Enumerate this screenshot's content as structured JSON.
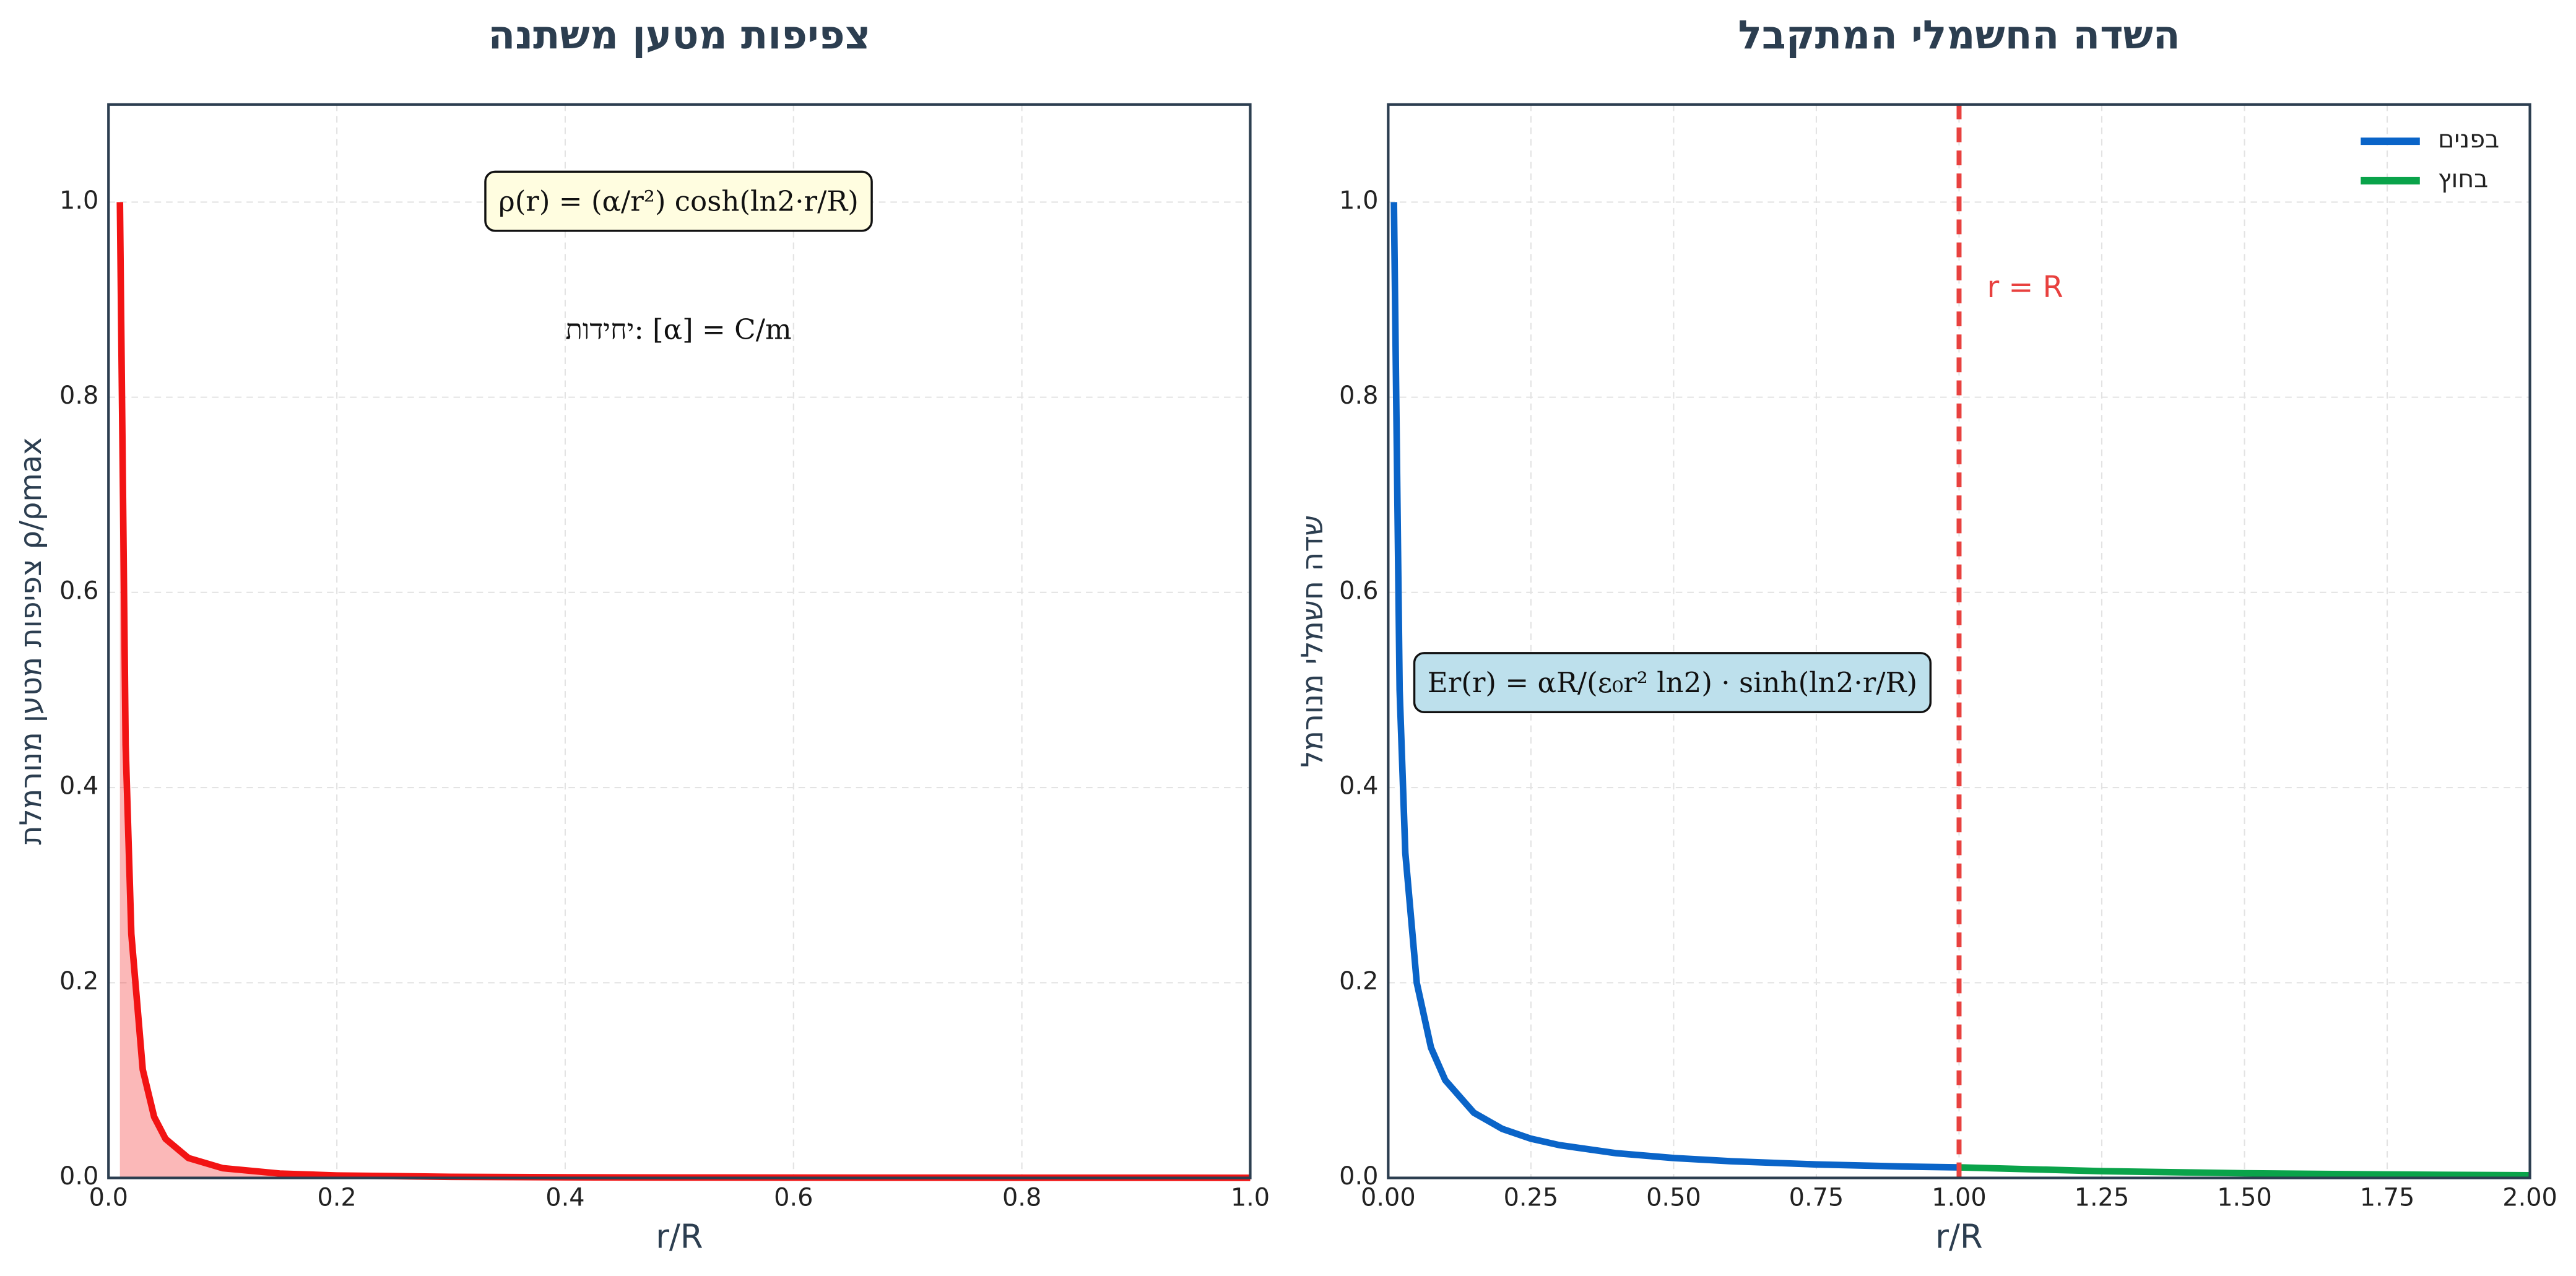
{
  "chart_data": [
    {
      "type": "line",
      "title": "צפיפות מטען משתנה",
      "x_label": "r/R",
      "y_label": "צפיפות מטען מנורמלת ρ/ρmax",
      "fill": true,
      "grid": true,
      "xlim": [
        0,
        1
      ],
      "ylim": [
        0,
        1.1
      ],
      "xticks": [
        {
          "value": 0,
          "label": "0.0"
        },
        0.2,
        0.4,
        0.6,
        0.8,
        {
          "value": 1,
          "label": "1.0"
        }
      ],
      "yticks": [
        {
          "value": 0,
          "label": "0.0"
        },
        0.2,
        0.4,
        0.6,
        0.8,
        {
          "value": 1,
          "label": "1.0"
        }
      ],
      "series": [
        {
          "color": "#f21414",
          "x": [
            0.01,
            0.015,
            0.02,
            0.03,
            0.04,
            0.05,
            0.07,
            0.1,
            0.15,
            0.2,
            0.3,
            0.4,
            0.5,
            0.6,
            0.7,
            0.8,
            0.9,
            1.0
          ],
          "values": [
            1.0,
            0.444,
            0.25,
            0.111,
            0.0625,
            0.04,
            0.0204,
            0.01,
            0.0045,
            0.0025,
            0.0011,
            0.00066,
            0.00042,
            0.0003,
            0.00023,
            0.00018,
            0.00015,
            0.00012
          ]
        }
      ],
      "annotations": [
        {
          "text": "ρ(r) = (α/r²) cosh(ln2·r/R)",
          "box": "#fffde0"
        },
        {
          "text": "יחידות: [α] = C/m"
        }
      ]
    },
    {
      "type": "line",
      "title": "השדה החשמלי המתקבל",
      "x_label": "r/R",
      "y_label": "שדה חשמלי מנורמל",
      "grid": true,
      "legend": "upper right",
      "xlim": [
        0,
        2
      ],
      "ylim": [
        0,
        1.1
      ],
      "xticks": [
        {
          "value": 0,
          "label": "0.00"
        },
        0.25,
        {
          "value": 0.5,
          "label": "0.50"
        },
        0.75,
        {
          "value": 1,
          "label": "1.00"
        },
        1.25,
        {
          "value": 1.5,
          "label": "1.50"
        },
        1.75,
        {
          "value": 2,
          "label": "2.00"
        }
      ],
      "yticks": [
        {
          "value": 0,
          "label": "0.0"
        },
        0.2,
        0.4,
        0.6,
        0.8,
        {
          "value": 1,
          "label": "1.0"
        }
      ],
      "series": [
        {
          "name": "בפנים",
          "color": "#0a64c8",
          "x": [
            0.01,
            0.02,
            0.03,
            0.05,
            0.075,
            0.1,
            0.15,
            0.2,
            0.25,
            0.3,
            0.4,
            0.5,
            0.6,
            0.75,
            0.9,
            1.0
          ],
          "values": [
            1.0,
            0.5,
            0.333,
            0.2,
            0.1334,
            0.1001,
            0.0668,
            0.0502,
            0.0402,
            0.0336,
            0.0253,
            0.0204,
            0.0171,
            0.0138,
            0.0117,
            0.0108
          ]
        },
        {
          "name": "בחוץ",
          "color": "#0aa34a",
          "x": [
            1.0,
            1.25,
            1.5,
            1.75,
            2.0
          ],
          "values": [
            0.0108,
            0.0069,
            0.0048,
            0.0035,
            0.0027
          ]
        }
      ],
      "vline": {
        "x": 1,
        "label": "r = R",
        "color": "#e8413f"
      },
      "annotations": [
        {
          "text": "Er(r) = αR/(ε₀r² ln2) · sinh(ln2·r/R)",
          "box": "#bde0ec"
        }
      ]
    }
  ]
}
